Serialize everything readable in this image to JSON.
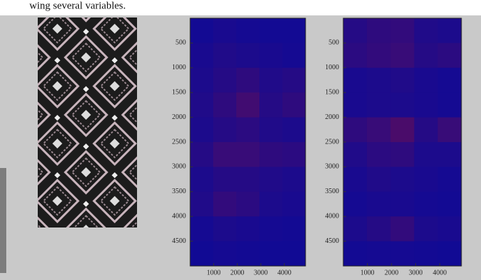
{
  "caption": "wing several variables.",
  "chart_data": [
    {
      "type": "heatmap",
      "xlim": [
        0,
        4900
      ],
      "ylim": [
        0,
        5000
      ],
      "y_reversed": true,
      "xticks": [
        1000,
        2000,
        3000,
        4000
      ],
      "yticks": [
        500,
        1000,
        1500,
        2000,
        2500,
        3000,
        3500,
        4000,
        4500
      ],
      "colormap": [
        "#0a0a9a",
        "#c01010"
      ],
      "values": [
        [
          0.05,
          0.08,
          0.06,
          0.05,
          0.05
        ],
        [
          0.08,
          0.12,
          0.1,
          0.08,
          0.06
        ],
        [
          0.1,
          0.15,
          0.2,
          0.12,
          0.15
        ],
        [
          0.12,
          0.2,
          0.3,
          0.15,
          0.2
        ],
        [
          0.1,
          0.15,
          0.18,
          0.12,
          0.1
        ],
        [
          0.15,
          0.25,
          0.25,
          0.2,
          0.18
        ],
        [
          0.1,
          0.15,
          0.15,
          0.12,
          0.1
        ],
        [
          0.12,
          0.22,
          0.18,
          0.1,
          0.08
        ],
        [
          0.06,
          0.1,
          0.08,
          0.06,
          0.05
        ],
        [
          0.04,
          0.06,
          0.05,
          0.04,
          0.04
        ]
      ]
    },
    {
      "type": "heatmap",
      "xlim": [
        0,
        4900
      ],
      "ylim": [
        0,
        5000
      ],
      "y_reversed": true,
      "xticks": [
        1000,
        2000,
        3000,
        4000
      ],
      "yticks": [
        500,
        1000,
        1500,
        2000,
        2500,
        3000,
        3500,
        4000,
        4500
      ],
      "colormap": [
        "#0a0a9a",
        "#c01010"
      ],
      "values": [
        [
          0.15,
          0.2,
          0.22,
          0.12,
          0.1
        ],
        [
          0.18,
          0.22,
          0.25,
          0.15,
          0.18
        ],
        [
          0.08,
          0.1,
          0.12,
          0.08,
          0.06
        ],
        [
          0.08,
          0.1,
          0.1,
          0.08,
          0.06
        ],
        [
          0.2,
          0.25,
          0.35,
          0.15,
          0.25
        ],
        [
          0.12,
          0.18,
          0.2,
          0.1,
          0.1
        ],
        [
          0.08,
          0.12,
          0.1,
          0.08,
          0.06
        ],
        [
          0.06,
          0.08,
          0.08,
          0.06,
          0.05
        ],
        [
          0.1,
          0.15,
          0.22,
          0.1,
          0.08
        ],
        [
          0.05,
          0.06,
          0.06,
          0.05,
          0.04
        ]
      ]
    }
  ]
}
